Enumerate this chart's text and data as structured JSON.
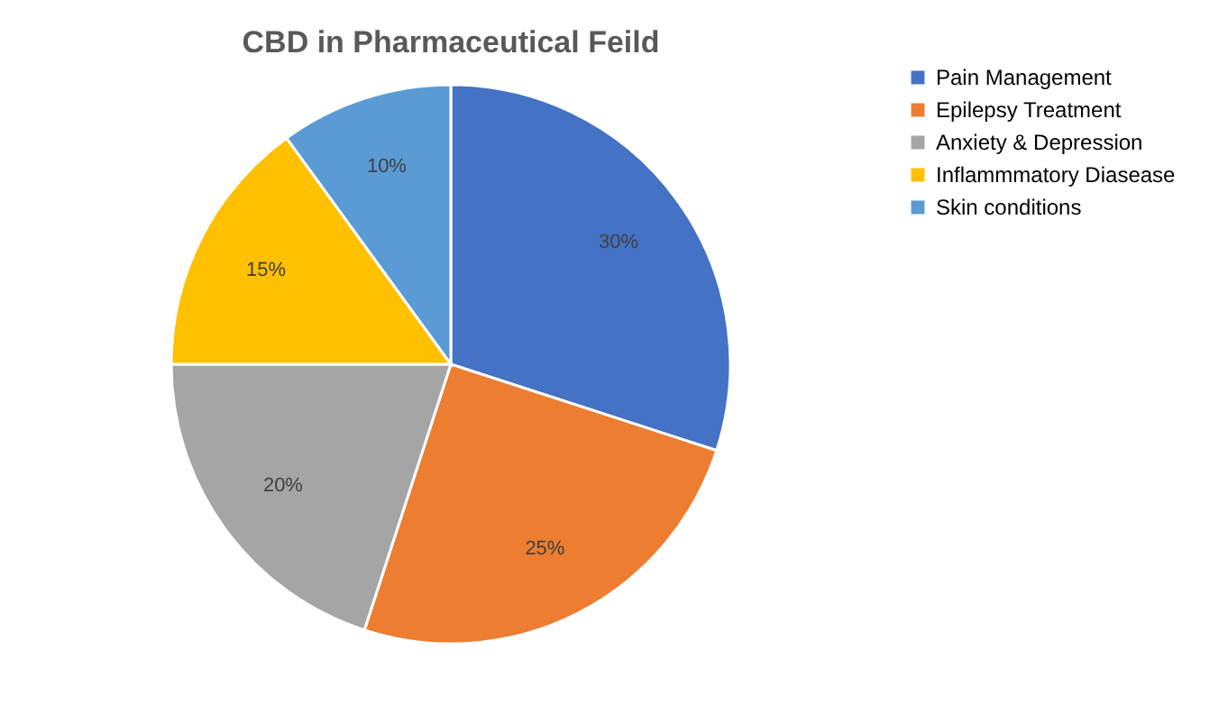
{
  "chart_data": {
    "type": "pie",
    "title": "CBD in Pharmaceutical Feild",
    "categories": [
      "Pain Management",
      "Epilepsy Treatment",
      "Anxiety & Depression",
      "Inflammmatory Diasease",
      "Skin conditions"
    ],
    "values": [
      30,
      25,
      20,
      15,
      10
    ],
    "colors": [
      "#4472c4",
      "#ed7d31",
      "#a5a5a5",
      "#ffc000",
      "#5b9bd5"
    ],
    "value_labels": [
      "30%",
      "25%",
      "20%",
      "15%",
      "10%"
    ],
    "legend": "right"
  }
}
